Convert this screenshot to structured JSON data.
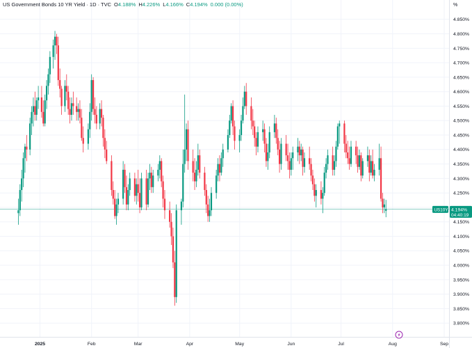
{
  "header": {
    "symbol_title": "US Government Bonds 10 YR Yield · 1D · TVC",
    "ohlc": [
      {
        "label": "O",
        "value": "4.188%"
      },
      {
        "label": "H",
        "value": "4.226%"
      },
      {
        "label": "L",
        "value": "4.166%"
      },
      {
        "label": "C",
        "value": "4.194%"
      }
    ],
    "change": "0.000 (0.00%)"
  },
  "colors": {
    "up": "#089981",
    "down": "#f23645",
    "grid": "#f0f3fa",
    "price_line": "#089981"
  },
  "price_tag": {
    "ticker": "US10Y",
    "value": "4.194%",
    "countdown": "04:40:19"
  },
  "event_icon": "lightning-icon",
  "chart_data": {
    "type": "candlestick",
    "y_unit": "%",
    "ylim": [
      3.775,
      4.875
    ],
    "y_ticks": [
      "4.850%",
      "4.800%",
      "4.750%",
      "4.700%",
      "4.650%",
      "4.600%",
      "4.550%",
      "4.500%",
      "4.450%",
      "4.400%",
      "4.350%",
      "4.300%",
      "4.250%",
      "4.200%",
      "4.150%",
      "4.100%",
      "4.050%",
      "4.000%",
      "3.950%",
      "3.900%",
      "3.850%",
      "3.800%"
    ],
    "x_labels": [
      "2025",
      "Feb",
      "Mar",
      "Apr",
      "May",
      "Jun",
      "Jul",
      "Aug",
      "Sep"
    ],
    "x_label_days": [
      1,
      32,
      60,
      91,
      121,
      152,
      182,
      213,
      244
    ],
    "grid": true,
    "last_value": 4.194,
    "candles": [
      {
        "d": -12,
        "o": 4.18,
        "h": 4.23,
        "l": 4.14,
        "c": 4.19
      },
      {
        "d": -11,
        "o": 4.19,
        "h": 4.28,
        "l": 4.17,
        "c": 4.26
      },
      {
        "d": -10,
        "o": 4.26,
        "h": 4.33,
        "l": 4.22,
        "c": 4.3
      },
      {
        "d": -9,
        "o": 4.3,
        "h": 4.39,
        "l": 4.27,
        "c": 4.37
      },
      {
        "d": -8,
        "o": 4.37,
        "h": 4.42,
        "l": 4.32,
        "c": 4.41
      },
      {
        "d": -7,
        "o": 4.41,
        "h": 4.45,
        "l": 4.36,
        "c": 4.4
      },
      {
        "d": -5,
        "o": 4.4,
        "h": 4.51,
        "l": 4.38,
        "c": 4.49
      },
      {
        "d": -4,
        "o": 4.49,
        "h": 4.55,
        "l": 4.45,
        "c": 4.53
      },
      {
        "d": -3,
        "o": 4.53,
        "h": 4.58,
        "l": 4.48,
        "c": 4.55
      },
      {
        "d": -2,
        "o": 4.55,
        "h": 4.6,
        "l": 4.5,
        "c": 4.52
      },
      {
        "d": -1,
        "o": 4.52,
        "h": 4.58,
        "l": 4.5,
        "c": 4.57
      },
      {
        "d": 0,
        "o": 4.57,
        "h": 4.62,
        "l": 4.54,
        "c": 4.58
      },
      {
        "d": 2,
        "o": 4.58,
        "h": 4.62,
        "l": 4.51,
        "c": 4.53
      },
      {
        "d": 3,
        "o": 4.53,
        "h": 4.57,
        "l": 4.48,
        "c": 4.49
      },
      {
        "d": 4,
        "o": 4.49,
        "h": 4.59,
        "l": 4.48,
        "c": 4.57
      },
      {
        "d": 5,
        "o": 4.57,
        "h": 4.64,
        "l": 4.54,
        "c": 4.62
      },
      {
        "d": 6,
        "o": 4.62,
        "h": 4.68,
        "l": 4.59,
        "c": 4.66
      },
      {
        "d": 7,
        "o": 4.66,
        "h": 4.74,
        "l": 4.63,
        "c": 4.72
      },
      {
        "d": 9,
        "o": 4.72,
        "h": 4.78,
        "l": 4.68,
        "c": 4.76
      },
      {
        "d": 10,
        "o": 4.76,
        "h": 4.81,
        "l": 4.71,
        "c": 4.79
      },
      {
        "d": 11,
        "o": 4.79,
        "h": 4.8,
        "l": 4.73,
        "c": 4.76
      },
      {
        "d": 12,
        "o": 4.76,
        "h": 4.79,
        "l": 4.62,
        "c": 4.64
      },
      {
        "d": 13,
        "o": 4.64,
        "h": 4.68,
        "l": 4.58,
        "c": 4.61
      },
      {
        "d": 14,
        "o": 4.61,
        "h": 4.62,
        "l": 4.52,
        "c": 4.55
      },
      {
        "d": 16,
        "o": 4.55,
        "h": 4.64,
        "l": 4.53,
        "c": 4.62
      },
      {
        "d": 17,
        "o": 4.62,
        "h": 4.66,
        "l": 4.57,
        "c": 4.6
      },
      {
        "d": 18,
        "o": 4.6,
        "h": 4.62,
        "l": 4.52,
        "c": 4.54
      },
      {
        "d": 19,
        "o": 4.54,
        "h": 4.58,
        "l": 4.49,
        "c": 4.52
      },
      {
        "d": 20,
        "o": 4.52,
        "h": 4.58,
        "l": 4.5,
        "c": 4.56
      },
      {
        "d": 21,
        "o": 4.56,
        "h": 4.6,
        "l": 4.52,
        "c": 4.55
      },
      {
        "d": 23,
        "o": 4.55,
        "h": 4.58,
        "l": 4.5,
        "c": 4.53
      },
      {
        "d": 24,
        "o": 4.53,
        "h": 4.56,
        "l": 4.5,
        "c": 4.54
      },
      {
        "d": 25,
        "o": 4.54,
        "h": 4.57,
        "l": 4.49,
        "c": 4.51
      },
      {
        "d": 26,
        "o": 4.51,
        "h": 4.54,
        "l": 4.43,
        "c": 4.44
      },
      {
        "d": 27,
        "o": 4.44,
        "h": 4.48,
        "l": 4.39,
        "c": 4.42
      },
      {
        "d": 30,
        "o": 4.42,
        "h": 4.49,
        "l": 4.4,
        "c": 4.47
      },
      {
        "d": 31,
        "o": 4.47,
        "h": 4.56,
        "l": 4.44,
        "c": 4.53
      },
      {
        "d": 32,
        "o": 4.53,
        "h": 4.66,
        "l": 4.5,
        "c": 4.64
      },
      {
        "d": 33,
        "o": 4.64,
        "h": 4.65,
        "l": 4.52,
        "c": 4.54
      },
      {
        "d": 34,
        "o": 4.54,
        "h": 4.58,
        "l": 4.49,
        "c": 4.52
      },
      {
        "d": 35,
        "o": 4.52,
        "h": 4.55,
        "l": 4.47,
        "c": 4.49
      },
      {
        "d": 37,
        "o": 4.49,
        "h": 4.56,
        "l": 4.47,
        "c": 4.54
      },
      {
        "d": 38,
        "o": 4.54,
        "h": 4.57,
        "l": 4.48,
        "c": 4.51
      },
      {
        "d": 39,
        "o": 4.51,
        "h": 4.52,
        "l": 4.41,
        "c": 4.44
      },
      {
        "d": 40,
        "o": 4.44,
        "h": 4.47,
        "l": 4.37,
        "c": 4.4
      },
      {
        "d": 41,
        "o": 4.4,
        "h": 4.43,
        "l": 4.35,
        "c": 4.36
      },
      {
        "d": 44,
        "o": 4.36,
        "h": 4.38,
        "l": 4.24,
        "c": 4.26
      },
      {
        "d": 45,
        "o": 4.26,
        "h": 4.29,
        "l": 4.21,
        "c": 4.23
      },
      {
        "d": 46,
        "o": 4.23,
        "h": 4.26,
        "l": 4.16,
        "c": 4.17
      },
      {
        "d": 47,
        "o": 4.17,
        "h": 4.23,
        "l": 4.14,
        "c": 4.21
      },
      {
        "d": 48,
        "o": 4.21,
        "h": 4.25,
        "l": 4.18,
        "c": 4.23
      },
      {
        "d": 51,
        "o": 4.23,
        "h": 4.36,
        "l": 4.21,
        "c": 4.33
      },
      {
        "d": 52,
        "o": 4.33,
        "h": 4.35,
        "l": 4.25,
        "c": 4.27
      },
      {
        "d": 53,
        "o": 4.27,
        "h": 4.31,
        "l": 4.19,
        "c": 4.21
      },
      {
        "d": 54,
        "o": 4.21,
        "h": 4.28,
        "l": 4.19,
        "c": 4.26
      },
      {
        "d": 55,
        "o": 4.26,
        "h": 4.32,
        "l": 4.24,
        "c": 4.3
      },
      {
        "d": 58,
        "o": 4.3,
        "h": 4.32,
        "l": 4.22,
        "c": 4.24
      },
      {
        "d": 59,
        "o": 4.24,
        "h": 4.3,
        "l": 4.21,
        "c": 4.28
      },
      {
        "d": 60,
        "o": 4.28,
        "h": 4.33,
        "l": 4.22,
        "c": 4.25
      },
      {
        "d": 61,
        "o": 4.25,
        "h": 4.3,
        "l": 4.18,
        "c": 4.2
      },
      {
        "d": 62,
        "o": 4.2,
        "h": 4.32,
        "l": 4.19,
        "c": 4.3
      },
      {
        "d": 65,
        "o": 4.3,
        "h": 4.33,
        "l": 4.19,
        "c": 4.21
      },
      {
        "d": 66,
        "o": 4.21,
        "h": 4.32,
        "l": 4.2,
        "c": 4.3
      },
      {
        "d": 67,
        "o": 4.3,
        "h": 4.35,
        "l": 4.26,
        "c": 4.32
      },
      {
        "d": 68,
        "o": 4.32,
        "h": 4.34,
        "l": 4.25,
        "c": 4.27
      },
      {
        "d": 69,
        "o": 4.27,
        "h": 4.33,
        "l": 4.25,
        "c": 4.31
      },
      {
        "d": 72,
        "o": 4.31,
        "h": 4.35,
        "l": 4.29,
        "c": 4.33
      },
      {
        "d": 73,
        "o": 4.33,
        "h": 4.38,
        "l": 4.3,
        "c": 4.36
      },
      {
        "d": 74,
        "o": 4.36,
        "h": 4.37,
        "l": 4.27,
        "c": 4.29
      },
      {
        "d": 75,
        "o": 4.29,
        "h": 4.31,
        "l": 4.2,
        "c": 4.23
      },
      {
        "d": 76,
        "o": 4.23,
        "h": 4.26,
        "l": 4.16,
        "c": 4.19
      },
      {
        "d": 79,
        "o": 4.19,
        "h": 4.22,
        "l": 4.13,
        "c": 4.15
      },
      {
        "d": 80,
        "o": 4.15,
        "h": 4.18,
        "l": 4.07,
        "c": 4.1
      },
      {
        "d": 81,
        "o": 4.1,
        "h": 4.13,
        "l": 3.99,
        "c": 4.01
      },
      {
        "d": 82,
        "o": 4.01,
        "h": 4.05,
        "l": 3.86,
        "c": 3.89
      },
      {
        "d": 83,
        "o": 3.89,
        "h": 4.21,
        "l": 3.87,
        "c": 4.19
      },
      {
        "d": 86,
        "o": 4.19,
        "h": 4.23,
        "l": 4.14,
        "c": 4.22
      },
      {
        "d": 87,
        "o": 4.22,
        "h": 4.4,
        "l": 4.2,
        "c": 4.35
      },
      {
        "d": 88,
        "o": 4.35,
        "h": 4.59,
        "l": 4.32,
        "c": 4.4
      },
      {
        "d": 89,
        "o": 4.4,
        "h": 4.49,
        "l": 4.36,
        "c": 4.47
      },
      {
        "d": 90,
        "o": 4.47,
        "h": 4.5,
        "l": 4.33,
        "c": 4.36
      },
      {
        "d": 93,
        "o": 4.36,
        "h": 4.4,
        "l": 4.29,
        "c": 4.32
      },
      {
        "d": 94,
        "o": 4.32,
        "h": 4.37,
        "l": 4.26,
        "c": 4.29
      },
      {
        "d": 95,
        "o": 4.29,
        "h": 4.36,
        "l": 4.27,
        "c": 4.33
      },
      {
        "d": 96,
        "o": 4.33,
        "h": 4.42,
        "l": 4.31,
        "c": 4.38
      },
      {
        "d": 97,
        "o": 4.38,
        "h": 4.4,
        "l": 4.3,
        "c": 4.32
      },
      {
        "d": 100,
        "o": 4.32,
        "h": 4.34,
        "l": 4.24,
        "c": 4.26
      },
      {
        "d": 101,
        "o": 4.26,
        "h": 4.28,
        "l": 4.18,
        "c": 4.21
      },
      {
        "d": 102,
        "o": 4.21,
        "h": 4.24,
        "l": 4.15,
        "c": 4.17
      },
      {
        "d": 103,
        "o": 4.17,
        "h": 4.23,
        "l": 4.15,
        "c": 4.19
      },
      {
        "d": 104,
        "o": 4.19,
        "h": 4.27,
        "l": 4.17,
        "c": 4.25
      },
      {
        "d": 107,
        "o": 4.25,
        "h": 4.33,
        "l": 4.23,
        "c": 4.31
      },
      {
        "d": 108,
        "o": 4.31,
        "h": 4.37,
        "l": 4.29,
        "c": 4.35
      },
      {
        "d": 109,
        "o": 4.35,
        "h": 4.38,
        "l": 4.29,
        "c": 4.32
      },
      {
        "d": 110,
        "o": 4.32,
        "h": 4.39,
        "l": 4.31,
        "c": 4.37
      },
      {
        "d": 111,
        "o": 4.37,
        "h": 4.42,
        "l": 4.34,
        "c": 4.4
      },
      {
        "d": 114,
        "o": 4.4,
        "h": 4.47,
        "l": 4.39,
        "c": 4.45
      },
      {
        "d": 115,
        "o": 4.45,
        "h": 4.52,
        "l": 4.44,
        "c": 4.5
      },
      {
        "d": 116,
        "o": 4.5,
        "h": 4.56,
        "l": 4.49,
        "c": 4.55
      },
      {
        "d": 117,
        "o": 4.55,
        "h": 4.57,
        "l": 4.45,
        "c": 4.48
      },
      {
        "d": 118,
        "o": 4.48,
        "h": 4.5,
        "l": 4.4,
        "c": 4.43
      },
      {
        "d": 121,
        "o": 4.43,
        "h": 4.47,
        "l": 4.39,
        "c": 4.45
      },
      {
        "d": 122,
        "o": 4.45,
        "h": 4.52,
        "l": 4.43,
        "c": 4.5
      },
      {
        "d": 123,
        "o": 4.5,
        "h": 4.58,
        "l": 4.49,
        "c": 4.55
      },
      {
        "d": 124,
        "o": 4.55,
        "h": 4.62,
        "l": 4.54,
        "c": 4.6
      },
      {
        "d": 125,
        "o": 4.6,
        "h": 4.63,
        "l": 4.52,
        "c": 4.55
      },
      {
        "d": 128,
        "o": 4.55,
        "h": 4.58,
        "l": 4.47,
        "c": 4.5
      },
      {
        "d": 129,
        "o": 4.5,
        "h": 4.54,
        "l": 4.45,
        "c": 4.48
      },
      {
        "d": 130,
        "o": 4.48,
        "h": 4.5,
        "l": 4.41,
        "c": 4.44
      },
      {
        "d": 131,
        "o": 4.44,
        "h": 4.46,
        "l": 4.38,
        "c": 4.41
      },
      {
        "d": 132,
        "o": 4.41,
        "h": 4.48,
        "l": 4.39,
        "c": 4.46
      },
      {
        "d": 135,
        "o": 4.46,
        "h": 4.5,
        "l": 4.43,
        "c": 4.47
      },
      {
        "d": 136,
        "o": 4.47,
        "h": 4.49,
        "l": 4.39,
        "c": 4.42
      },
      {
        "d": 137,
        "o": 4.42,
        "h": 4.44,
        "l": 4.34,
        "c": 4.36
      },
      {
        "d": 138,
        "o": 4.36,
        "h": 4.42,
        "l": 4.33,
        "c": 4.39
      },
      {
        "d": 139,
        "o": 4.39,
        "h": 4.48,
        "l": 4.37,
        "c": 4.46
      },
      {
        "d": 142,
        "o": 4.46,
        "h": 4.52,
        "l": 4.44,
        "c": 4.49
      },
      {
        "d": 143,
        "o": 4.49,
        "h": 4.51,
        "l": 4.42,
        "c": 4.44
      },
      {
        "d": 144,
        "o": 4.44,
        "h": 4.47,
        "l": 4.38,
        "c": 4.4
      },
      {
        "d": 145,
        "o": 4.4,
        "h": 4.43,
        "l": 4.32,
        "c": 4.35
      },
      {
        "d": 146,
        "o": 4.35,
        "h": 4.44,
        "l": 4.33,
        "c": 4.42
      },
      {
        "d": 149,
        "o": 4.42,
        "h": 4.45,
        "l": 4.36,
        "c": 4.38
      },
      {
        "d": 150,
        "o": 4.38,
        "h": 4.42,
        "l": 4.33,
        "c": 4.36
      },
      {
        "d": 151,
        "o": 4.36,
        "h": 4.39,
        "l": 4.3,
        "c": 4.33
      },
      {
        "d": 152,
        "o": 4.33,
        "h": 4.39,
        "l": 4.31,
        "c": 4.37
      },
      {
        "d": 153,
        "o": 4.37,
        "h": 4.41,
        "l": 4.33,
        "c": 4.39
      },
      {
        "d": 156,
        "o": 4.39,
        "h": 4.44,
        "l": 4.36,
        "c": 4.41
      },
      {
        "d": 157,
        "o": 4.41,
        "h": 4.43,
        "l": 4.35,
        "c": 4.38
      },
      {
        "d": 158,
        "o": 4.38,
        "h": 4.42,
        "l": 4.36,
        "c": 4.4
      },
      {
        "d": 159,
        "o": 4.4,
        "h": 4.41,
        "l": 4.31,
        "c": 4.34
      },
      {
        "d": 160,
        "o": 4.34,
        "h": 4.39,
        "l": 4.32,
        "c": 4.37
      },
      {
        "d": 163,
        "o": 4.37,
        "h": 4.41,
        "l": 4.33,
        "c": 4.35
      },
      {
        "d": 164,
        "o": 4.35,
        "h": 4.37,
        "l": 4.29,
        "c": 4.31
      },
      {
        "d": 165,
        "o": 4.31,
        "h": 4.33,
        "l": 4.26,
        "c": 4.28
      },
      {
        "d": 166,
        "o": 4.28,
        "h": 4.3,
        "l": 4.22,
        "c": 4.24
      },
      {
        "d": 167,
        "o": 4.24,
        "h": 4.28,
        "l": 4.2,
        "c": 4.26
      },
      {
        "d": 170,
        "o": 4.26,
        "h": 4.29,
        "l": 4.21,
        "c": 4.23
      },
      {
        "d": 171,
        "o": 4.23,
        "h": 4.27,
        "l": 4.18,
        "c": 4.25
      },
      {
        "d": 172,
        "o": 4.25,
        "h": 4.34,
        "l": 4.24,
        "c": 4.32
      },
      {
        "d": 173,
        "o": 4.32,
        "h": 4.37,
        "l": 4.3,
        "c": 4.35
      },
      {
        "d": 174,
        "o": 4.35,
        "h": 4.4,
        "l": 4.33,
        "c": 4.38
      },
      {
        "d": 177,
        "o": 4.38,
        "h": 4.41,
        "l": 4.31,
        "c": 4.33
      },
      {
        "d": 178,
        "o": 4.33,
        "h": 4.38,
        "l": 4.31,
        "c": 4.36
      },
      {
        "d": 179,
        "o": 4.36,
        "h": 4.43,
        "l": 4.34,
        "c": 4.41
      },
      {
        "d": 180,
        "o": 4.41,
        "h": 4.49,
        "l": 4.4,
        "c": 4.48
      },
      {
        "d": 181,
        "o": 4.48,
        "h": 4.5,
        "l": 4.42,
        "c": 4.49
      },
      {
        "d": 184,
        "o": 4.49,
        "h": 4.5,
        "l": 4.39,
        "c": 4.42
      },
      {
        "d": 185,
        "o": 4.42,
        "h": 4.45,
        "l": 4.37,
        "c": 4.39
      },
      {
        "d": 186,
        "o": 4.39,
        "h": 4.43,
        "l": 4.35,
        "c": 4.37
      },
      {
        "d": 187,
        "o": 4.37,
        "h": 4.41,
        "l": 4.33,
        "c": 4.35
      },
      {
        "d": 188,
        "o": 4.35,
        "h": 4.43,
        "l": 4.34,
        "c": 4.41
      },
      {
        "d": 191,
        "o": 4.41,
        "h": 4.43,
        "l": 4.35,
        "c": 4.38
      },
      {
        "d": 192,
        "o": 4.38,
        "h": 4.41,
        "l": 4.32,
        "c": 4.34
      },
      {
        "d": 193,
        "o": 4.34,
        "h": 4.4,
        "l": 4.33,
        "c": 4.38
      },
      {
        "d": 194,
        "o": 4.38,
        "h": 4.39,
        "l": 4.29,
        "c": 4.31
      },
      {
        "d": 195,
        "o": 4.31,
        "h": 4.37,
        "l": 4.3,
        "c": 4.36
      },
      {
        "d": 198,
        "o": 4.36,
        "h": 4.41,
        "l": 4.34,
        "c": 4.38
      },
      {
        "d": 199,
        "o": 4.38,
        "h": 4.4,
        "l": 4.29,
        "c": 4.32
      },
      {
        "d": 200,
        "o": 4.32,
        "h": 4.38,
        "l": 4.31,
        "c": 4.36
      },
      {
        "d": 201,
        "o": 4.36,
        "h": 4.4,
        "l": 4.3,
        "c": 4.31
      },
      {
        "d": 202,
        "o": 4.31,
        "h": 4.35,
        "l": 4.29,
        "c": 4.33
      },
      {
        "d": 205,
        "o": 4.33,
        "h": 4.42,
        "l": 4.31,
        "c": 4.37
      },
      {
        "d": 206,
        "o": 4.37,
        "h": 4.41,
        "l": 4.22,
        "c": 4.23
      },
      {
        "d": 207,
        "o": 4.23,
        "h": 4.25,
        "l": 4.18,
        "c": 4.2
      },
      {
        "d": 208,
        "o": 4.2,
        "h": 4.23,
        "l": 4.18,
        "c": 4.21
      },
      {
        "d": 209,
        "o": 4.188,
        "h": 4.226,
        "l": 4.166,
        "c": 4.194
      }
    ]
  }
}
